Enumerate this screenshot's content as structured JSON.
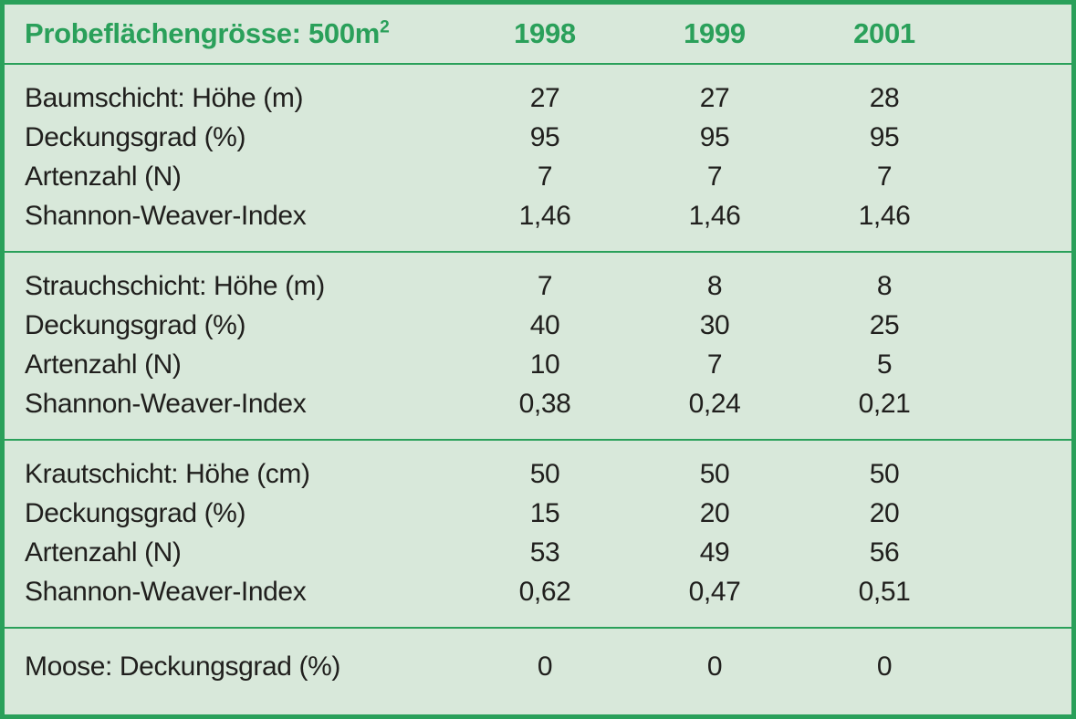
{
  "colors": {
    "accent_green": "#2aa05a",
    "background_green": "#d8e8da",
    "text": "#201f1d"
  },
  "chart_data": {
    "type": "table",
    "title": "Probeflächengrösse: 500m",
    "title_superscript": "2",
    "columns": [
      "1998",
      "1999",
      "2001"
    ],
    "sections": [
      {
        "name": "Baumschicht",
        "rows": [
          {
            "label": "Baumschicht: Höhe (m)",
            "values": [
              "27",
              "27",
              "28"
            ]
          },
          {
            "label": "Deckungsgrad (%)",
            "values": [
              "95",
              "95",
              "95"
            ]
          },
          {
            "label": "Artenzahl (N)",
            "values": [
              "7",
              "7",
              "7"
            ]
          },
          {
            "label": "Shannon-Weaver-Index",
            "values": [
              "1,46",
              "1,46",
              "1,46"
            ]
          }
        ]
      },
      {
        "name": "Strauchschicht",
        "rows": [
          {
            "label": "Strauchschicht: Höhe (m)",
            "values": [
              "7",
              "8",
              "8"
            ]
          },
          {
            "label": "Deckungsgrad (%)",
            "values": [
              "40",
              "30",
              "25"
            ]
          },
          {
            "label": "Artenzahl (N)",
            "values": [
              "10",
              "7",
              "5"
            ]
          },
          {
            "label": "Shannon-Weaver-Index",
            "values": [
              "0,38",
              "0,24",
              "0,21"
            ]
          }
        ]
      },
      {
        "name": "Krautschicht",
        "rows": [
          {
            "label": "Krautschicht: Höhe (cm)",
            "values": [
              "50",
              "50",
              "50"
            ]
          },
          {
            "label": "Deckungsgrad (%)",
            "values": [
              "15",
              "20",
              "20"
            ]
          },
          {
            "label": "Artenzahl (N)",
            "values": [
              "53",
              "49",
              "56"
            ]
          },
          {
            "label": "Shannon-Weaver-Index",
            "values": [
              "0,62",
              "0,47",
              "0,51"
            ]
          }
        ]
      },
      {
        "name": "Moose",
        "rows": [
          {
            "label": "Moose: Deckungsgrad (%)",
            "values": [
              "0",
              "0",
              "0"
            ]
          }
        ]
      }
    ]
  }
}
